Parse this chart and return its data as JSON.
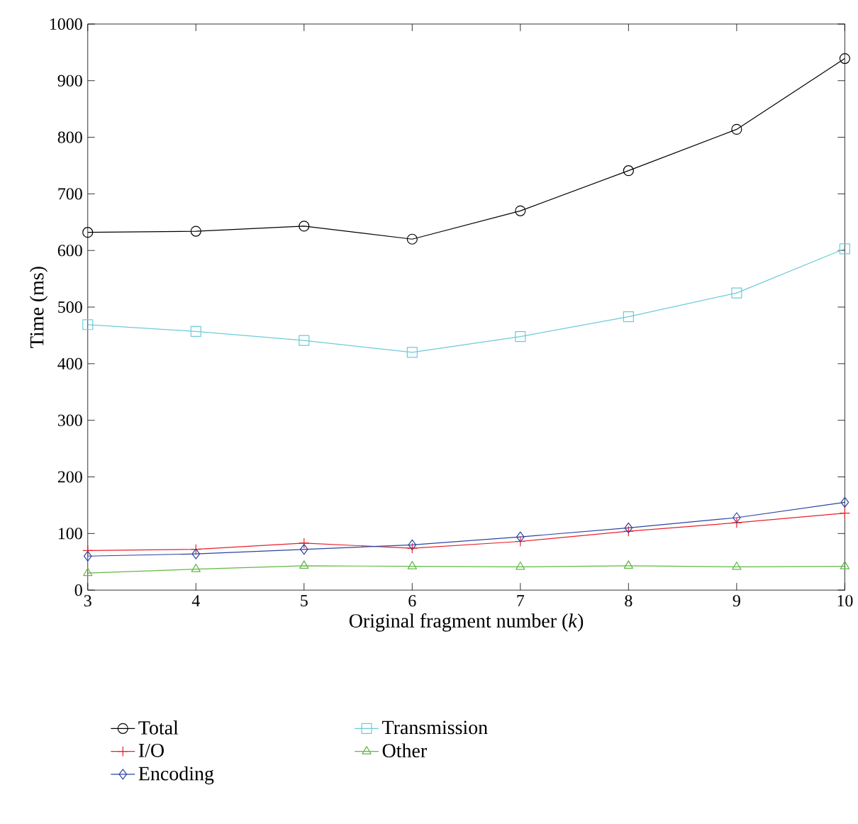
{
  "chart_data": {
    "type": "line",
    "xlabel": "Original fragment number (*k*)",
    "ylabel": "Time (ms)",
    "x": [
      3,
      4,
      5,
      6,
      7,
      8,
      9,
      10
    ],
    "xlim": [
      3,
      10
    ],
    "xticks": [
      3,
      4,
      5,
      6,
      7,
      8,
      9,
      10
    ],
    "ylim": [
      0,
      1000
    ],
    "yticks": [
      0,
      100,
      200,
      300,
      400,
      500,
      600,
      700,
      800,
      900,
      1000
    ],
    "grid": false,
    "legend": "bottom",
    "line_style": "solid",
    "series": [
      {
        "name": "Total",
        "color": "#000000",
        "marker": "circle",
        "values": [
          632,
          634,
          643,
          620,
          670,
          741,
          814,
          939
        ]
      },
      {
        "name": "I/O",
        "color": "#e8202a",
        "marker": "cross",
        "values": [
          70,
          72,
          83,
          74,
          86,
          104,
          119,
          136
        ]
      },
      {
        "name": "Encoding",
        "color": "#2a44a0",
        "marker": "diamond",
        "values": [
          60,
          64,
          72,
          80,
          94,
          110,
          128,
          155
        ]
      },
      {
        "name": "Transmission",
        "color": "#6ccbd8",
        "marker": "square",
        "values": [
          469,
          457,
          441,
          420,
          448,
          483,
          525,
          603
        ]
      },
      {
        "name": "Other",
        "color": "#62b846",
        "marker": "triangle",
        "values": [
          30,
          37,
          43,
          42,
          41,
          43,
          41,
          42
        ]
      }
    ]
  }
}
